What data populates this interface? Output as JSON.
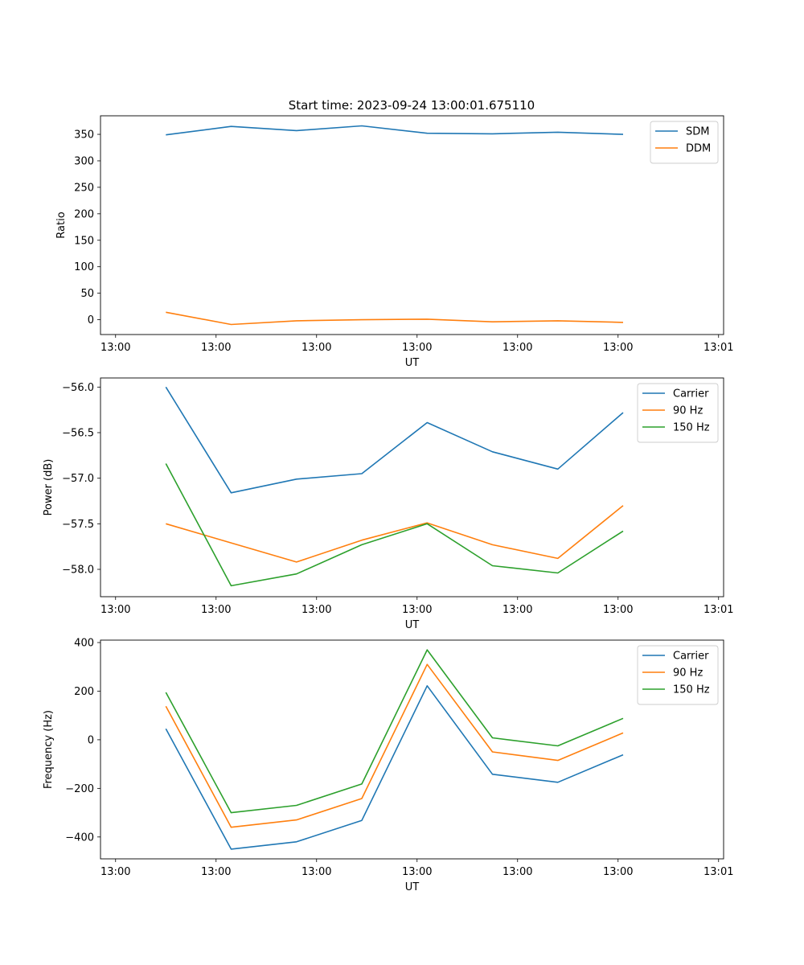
{
  "figure_title": "Start time: 2023-09-24 13:00:01.675110",
  "colors": {
    "blue": "#1f77b4",
    "orange": "#ff7f0e",
    "green": "#2ca02c"
  },
  "chart_data": [
    {
      "id": "ratio",
      "type": "line",
      "title": "Start time: 2023-09-24 13:00:01.675110",
      "xlabel": "UT",
      "ylabel": "Ratio",
      "xticks": [
        "13:00",
        "13:00",
        "13:00",
        "13:00",
        "13:00",
        "13:00",
        "13:01"
      ],
      "x": [
        0.5,
        1.15,
        1.8,
        2.45,
        3.1,
        3.75,
        4.4,
        5.05
      ],
      "xlim": [
        -0.15,
        6.05
      ],
      "ylim": [
        -28,
        385
      ],
      "yticks": [
        0,
        50,
        100,
        150,
        200,
        250,
        300,
        350
      ],
      "ytick_labels": [
        "0",
        "50",
        "100",
        "150",
        "200",
        "250",
        "300",
        "350"
      ],
      "legend_position": "top-right",
      "series": [
        {
          "name": "SDM",
          "color": "#1f77b4",
          "values": [
            349,
            365,
            357,
            366,
            352,
            351,
            354,
            350
          ]
        },
        {
          "name": "DDM",
          "color": "#ff7f0e",
          "values": [
            14,
            -9,
            -2,
            0,
            1,
            -4,
            -2,
            -5
          ]
        }
      ]
    },
    {
      "id": "power",
      "type": "line",
      "title": "",
      "xlabel": "UT",
      "ylabel": "Power (dB)",
      "xticks": [
        "13:00",
        "13:00",
        "13:00",
        "13:00",
        "13:00",
        "13:00",
        "13:01"
      ],
      "x": [
        0.5,
        1.15,
        1.8,
        2.45,
        3.1,
        3.75,
        4.4,
        5.05
      ],
      "xlim": [
        -0.15,
        6.05
      ],
      "ylim": [
        -58.3,
        -55.9
      ],
      "yticks": [
        -58.0,
        -57.5,
        -57.0,
        -56.5,
        -56.0
      ],
      "ytick_labels": [
        "−58.0",
        "−57.5",
        "−57.0",
        "−56.5",
        "−56.0"
      ],
      "legend_position": "top-right",
      "series": [
        {
          "name": "Carrier",
          "color": "#1f77b4",
          "values": [
            -56.0,
            -57.16,
            -57.01,
            -56.95,
            -56.39,
            -56.71,
            -56.9,
            -56.28
          ]
        },
        {
          "name": "90 Hz",
          "color": "#ff7f0e",
          "values": [
            -57.5,
            -57.71,
            -57.92,
            -57.68,
            -57.49,
            -57.73,
            -57.88,
            -57.3
          ]
        },
        {
          "name": "150 Hz",
          "color": "#2ca02c",
          "values": [
            -56.84,
            -58.18,
            -58.05,
            -57.73,
            -57.5,
            -57.96,
            -58.04,
            -57.58
          ]
        }
      ]
    },
    {
      "id": "frequency",
      "type": "line",
      "title": "",
      "xlabel": "UT",
      "ylabel": "Frequency (Hz)",
      "xticks": [
        "13:00",
        "13:00",
        "13:00",
        "13:00",
        "13:00",
        "13:00",
        "13:01"
      ],
      "x": [
        0.5,
        1.15,
        1.8,
        2.45,
        3.1,
        3.75,
        4.4,
        5.05
      ],
      "xlim": [
        -0.15,
        6.05
      ],
      "ylim": [
        -490,
        410
      ],
      "yticks": [
        -400,
        -200,
        0,
        200,
        400
      ],
      "ytick_labels": [
        "−400",
        "−200",
        "0",
        "200",
        "400"
      ],
      "legend_position": "top-right",
      "series": [
        {
          "name": "Carrier",
          "color": "#1f77b4",
          "values": [
            45,
            -450,
            -420,
            -332,
            222,
            -142,
            -175,
            -62
          ]
        },
        {
          "name": "90 Hz",
          "color": "#ff7f0e",
          "values": [
            138,
            -360,
            -330,
            -242,
            310,
            -50,
            -85,
            28
          ]
        },
        {
          "name": "150 Hz",
          "color": "#2ca02c",
          "values": [
            195,
            -300,
            -270,
            -182,
            370,
            8,
            -25,
            88
          ]
        }
      ]
    }
  ]
}
